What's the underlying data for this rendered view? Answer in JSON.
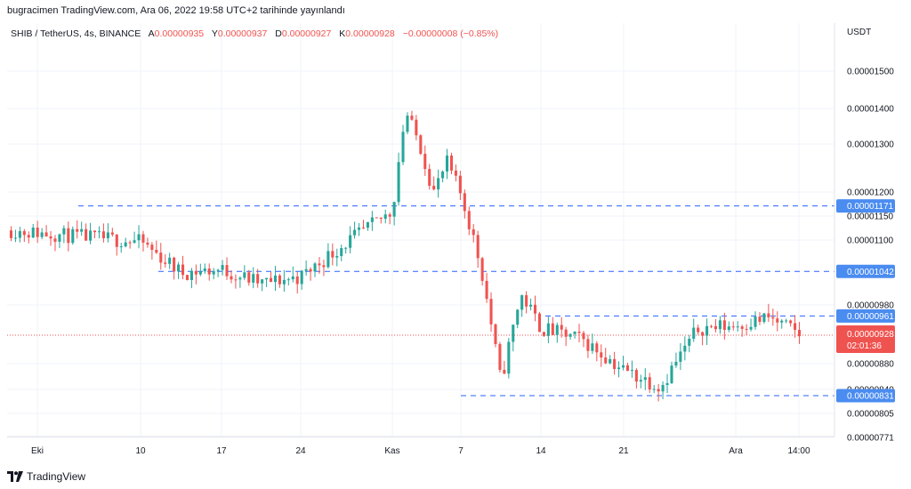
{
  "header": {
    "text": "bugracimen TradingView.com, Ara 06, 2022 19:58 UTC+2 tarihinde yayınlandı"
  },
  "legend": {
    "symbol": "SHIB / TetherUS, 4s, BINANCE",
    "open_label": "A",
    "open": "0.00000935",
    "high_label": "Y",
    "high": "0.00000937",
    "low_label": "D",
    "low": "0.00000927",
    "close_label": "K",
    "close": "0.00000928",
    "change": "−0.00000008 (−0.85%)"
  },
  "footer": {
    "brand": "TradingView"
  },
  "colors": {
    "up": "#26a69a",
    "down": "#ef5350",
    "level": "#2962ff",
    "grid": "#f0f3fa",
    "axis_text": "#131722"
  },
  "chart_data": {
    "type": "candlestick",
    "currency_label": "USDT",
    "y_ticks": [
      "0.00001500",
      "0.00001400",
      "0.00001300",
      "0.00001200",
      "0.00001150",
      "0.00001100",
      "0.00000980",
      "0.00000880",
      "0.00000840",
      "0.00000805",
      "0.00000771"
    ],
    "x_ticks": [
      "Eki",
      "10",
      "17",
      "24",
      "Kas",
      "7",
      "14",
      "21",
      "Ara",
      "14:00"
    ],
    "levels": [
      {
        "value": "0.00001171",
        "color": "#2962ff"
      },
      {
        "value": "0.00001042",
        "color": "#2962ff"
      },
      {
        "value": "0.00000961",
        "color": "#2962ff"
      },
      {
        "value": "0.00000831",
        "color": "#2962ff"
      }
    ],
    "last_price": {
      "value": "0.00000928",
      "countdown": "02:01:36",
      "color": "#ef5350"
    },
    "path": [
      [
        "Eki",
        1120
      ],
      [
        "10",
        1097
      ],
      [
        "10",
        1040
      ],
      [
        "17",
        1045
      ],
      [
        "17",
        1020
      ],
      [
        "24",
        1032
      ],
      [
        "Kas",
        1160
      ],
      [
        "Kas",
        1390
      ],
      [
        "Kas",
        1300
      ],
      [
        "Kas",
        1200
      ],
      [
        "Kas",
        1260
      ],
      [
        "7",
        1195
      ],
      [
        "7",
        1050
      ],
      [
        "7",
        850
      ],
      [
        "7",
        1000
      ],
      [
        "14",
        940
      ],
      [
        "14",
        920
      ],
      [
        "21",
        870
      ],
      [
        "21",
        845
      ],
      [
        "21",
        940
      ],
      [
        "Ara",
        945
      ],
      [
        "Ara",
        958
      ],
      [
        "14:00",
        928
      ]
    ]
  }
}
